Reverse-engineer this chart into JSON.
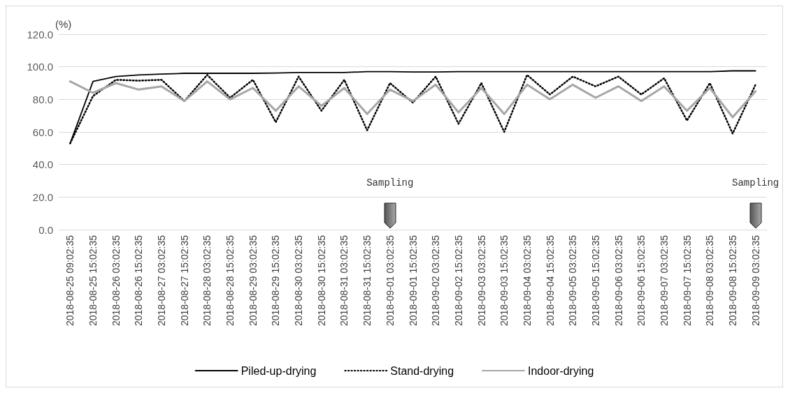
{
  "chart_data": {
    "type": "line",
    "ylabel": "(%)",
    "categories": [
      "2018-08-25 09:02:35",
      "2018-08-25 15:02:35",
      "2018-08-26 03:02:35",
      "2018-08-26 15:02:35",
      "2018-08-27 03:02:35",
      "2018-08-27 15:02:35",
      "2018-08-28 03:02:35",
      "2018-08-28 15:02:35",
      "2018-08-29 03:02:35",
      "2018-08-29 15:02:35",
      "2018-08-30 03:02:35",
      "2018-08-30 15:02:35",
      "2018-08-31 03:02:35",
      "2018-08-31 15:02:35",
      "2018-09-01 03:02:35",
      "2018-09-01 15:02:35",
      "2018-09-02 03:02:35",
      "2018-09-02 15:02:35",
      "2018-09-03 03:02:35",
      "2018-09-03 15:02:35",
      "2018-09-04 03:02:35",
      "2018-09-04 15:02:35",
      "2018-09-05 03:02:35",
      "2018-09-05 15:02:35",
      "2018-09-06 03:02:35",
      "2018-09-06 15:02:35",
      "2018-09-07 03:02:35",
      "2018-09-07 15:02:35",
      "2018-09-08 03:02:35",
      "2018-09-08 15:02:35",
      "2018-09-09 03:02:35"
    ],
    "series": [
      {
        "name": "Piled-up-drying",
        "color": "#000000",
        "line_style": "solid",
        "values": [
          53,
          91,
          94,
          95,
          95.5,
          96,
          96,
          96,
          96,
          96.2,
          96.5,
          96.5,
          96.5,
          97,
          97,
          96.8,
          96.8,
          97,
          97,
          97,
          97,
          97,
          97,
          97,
          97,
          97,
          97,
          97,
          97,
          97.5,
          97.5
        ]
      },
      {
        "name": "Stand-drying",
        "color": "#000000",
        "line_style": "dotted",
        "values": [
          53,
          82,
          92,
          91.5,
          92,
          79,
          95,
          81,
          92,
          66,
          94,
          73,
          92,
          61,
          90,
          78,
          94,
          65,
          90,
          60,
          95,
          83,
          94,
          88,
          94,
          83,
          93,
          67,
          90,
          59,
          89
        ]
      },
      {
        "name": "Indoor-drying",
        "color": "#a6a6a6",
        "line_style": "solid",
        "values": [
          91,
          84,
          90,
          86,
          88,
          79,
          91,
          80,
          87,
          73,
          88,
          76,
          87,
          71,
          86,
          79,
          89,
          72,
          87,
          71,
          89,
          80,
          89,
          81,
          88,
          79,
          88,
          73,
          87,
          69,
          85
        ]
      }
    ],
    "ylim": [
      0,
      120
    ],
    "yticks": [
      {
        "value": 0,
        "label": "0.0"
      },
      {
        "value": 20,
        "label": "20.0"
      },
      {
        "value": 40,
        "label": "40.0"
      },
      {
        "value": 60,
        "label": "60.0"
      },
      {
        "value": 80,
        "label": "80.0"
      },
      {
        "value": 100,
        "label": "100.0"
      },
      {
        "value": 120,
        "label": "120.0"
      }
    ],
    "grid": "y",
    "legend": "bottom",
    "marker": "none",
    "annotations": [
      "Sampling",
      "Sampling"
    ]
  }
}
